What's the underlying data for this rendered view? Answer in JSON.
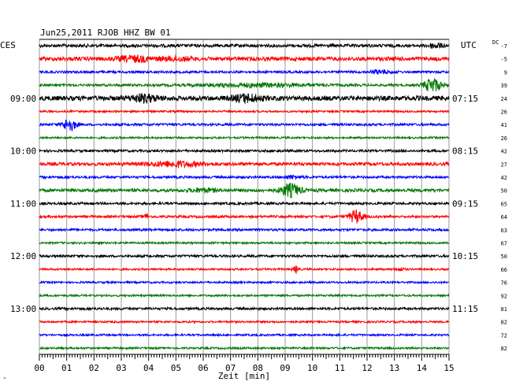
{
  "chart_data": {
    "type": "line",
    "title": "Jun25,2011   RJOB HHZ BW 01",
    "left_timezone": "CES",
    "right_timezone": "UTC",
    "dc_label": "DC",
    "xlabel": "Zeit [min]",
    "xlim": [
      0,
      15
    ],
    "x_ticks": [
      "00",
      "01",
      "02",
      "03",
      "04",
      "05",
      "06",
      "07",
      "08",
      "09",
      "10",
      "11",
      "12",
      "13",
      "14",
      "15"
    ],
    "grid": true,
    "color_cycle": [
      "#000000",
      "#ff0000",
      "#0000ff",
      "#007700"
    ],
    "left_hour_labels": [
      {
        "row": 4,
        "label": "09:00"
      },
      {
        "row": 8,
        "label": "10:00"
      },
      {
        "row": 12,
        "label": "11:00"
      },
      {
        "row": 16,
        "label": "12:00"
      },
      {
        "row": 20,
        "label": "13:00"
      }
    ],
    "right_hour_labels": [
      {
        "row": 4,
        "label": "07:15"
      },
      {
        "row": 8,
        "label": "08:15"
      },
      {
        "row": 12,
        "label": "09:15"
      },
      {
        "row": 16,
        "label": "10:15"
      },
      {
        "row": 20,
        "label": "11:15"
      }
    ],
    "dc_offsets": [
      "-7",
      "-5",
      "9",
      "39",
      "24",
      "26",
      "41",
      "26",
      "42",
      "27",
      "42",
      "50",
      "65",
      "64",
      "63",
      "67",
      "50",
      "66",
      "76",
      "92",
      "81",
      "82",
      "72",
      "82"
    ],
    "traces": [
      {
        "noise": 2,
        "events": [
          {
            "t": 14.5,
            "amp": 3,
            "dur": 0.5
          }
        ]
      },
      {
        "noise": 2.5,
        "events": [
          {
            "t": 3.5,
            "amp": 3,
            "dur": 1.2
          },
          {
            "t": 5.0,
            "amp": 2,
            "dur": 1.0
          }
        ]
      },
      {
        "noise": 1.5,
        "events": [
          {
            "t": 12.5,
            "amp": 2,
            "dur": 0.8
          }
        ]
      },
      {
        "noise": 1.5,
        "events": [
          {
            "t": 8.0,
            "amp": 2,
            "dur": 4.0
          },
          {
            "t": 14.4,
            "amp": 9,
            "dur": 0.6
          }
        ]
      },
      {
        "noise": 3,
        "events": [
          {
            "t": 3.8,
            "amp": 4,
            "dur": 1.0
          },
          {
            "t": 7.6,
            "amp": 4,
            "dur": 1.0
          }
        ]
      },
      {
        "noise": 1.2,
        "events": []
      },
      {
        "noise": 1.5,
        "events": [
          {
            "t": 1.1,
            "amp": 8,
            "dur": 0.5
          }
        ]
      },
      {
        "noise": 1.2,
        "events": []
      },
      {
        "noise": 1.5,
        "events": []
      },
      {
        "noise": 2,
        "events": [
          {
            "t": 5.0,
            "amp": 3,
            "dur": 2.0
          }
        ]
      },
      {
        "noise": 1.5,
        "events": [
          {
            "t": 9.3,
            "amp": 2,
            "dur": 0.6
          }
        ]
      },
      {
        "noise": 2,
        "events": [
          {
            "t": 6.0,
            "amp": 2,
            "dur": 1.0
          },
          {
            "t": 9.2,
            "amp": 8,
            "dur": 0.7
          }
        ]
      },
      {
        "noise": 1.5,
        "events": []
      },
      {
        "noise": 1.5,
        "events": [
          {
            "t": 3.9,
            "amp": 3,
            "dur": 0.2
          },
          {
            "t": 11.6,
            "amp": 8,
            "dur": 0.5
          }
        ]
      },
      {
        "noise": 1.5,
        "events": []
      },
      {
        "noise": 1.2,
        "events": []
      },
      {
        "noise": 1.5,
        "events": []
      },
      {
        "noise": 1.2,
        "events": [
          {
            "t": 9.4,
            "amp": 4,
            "dur": 0.2
          },
          {
            "t": 13.2,
            "amp": 2,
            "dur": 0.3
          }
        ]
      },
      {
        "noise": 1.2,
        "events": []
      },
      {
        "noise": 1.2,
        "events": []
      },
      {
        "noise": 1.5,
        "events": []
      },
      {
        "noise": 1.2,
        "events": []
      },
      {
        "noise": 1.2,
        "events": []
      },
      {
        "noise": 1.2,
        "events": []
      }
    ]
  }
}
